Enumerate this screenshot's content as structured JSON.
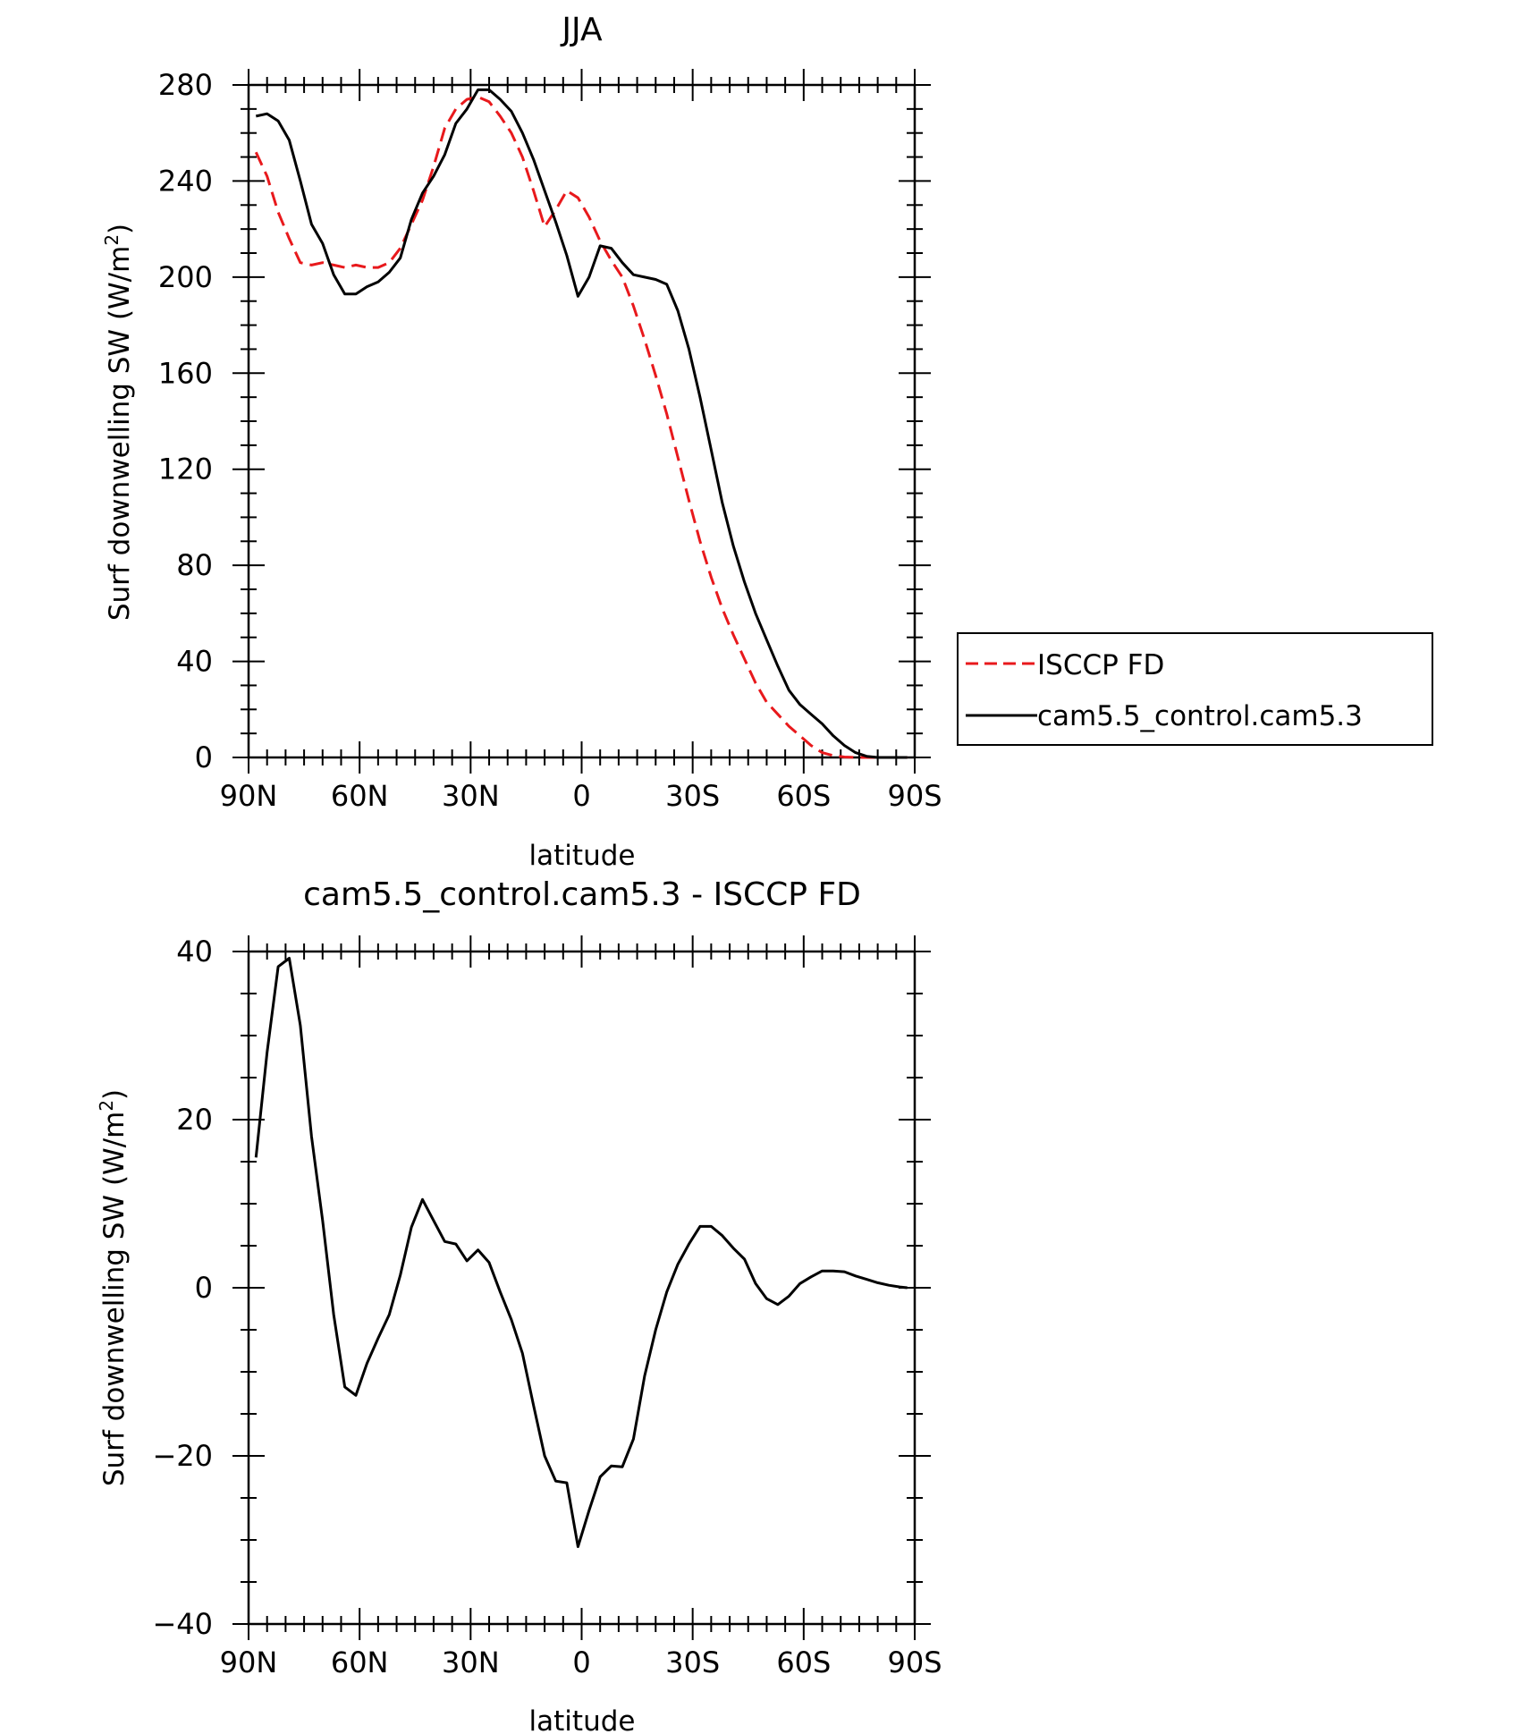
{
  "chart_data": [
    {
      "type": "line",
      "title": "JJA",
      "xlabel": "latitude",
      "ylabel_main": "Surf downwelling SW (W/m",
      "ylabel_sup": "2",
      "ylabel_close": ")",
      "xlim": [
        90,
        -90
      ],
      "ylim": [
        0,
        280
      ],
      "xticks": [
        90,
        60,
        30,
        0,
        -30,
        -60,
        -90
      ],
      "xtick_labels": [
        "90N",
        "60N",
        "30N",
        "0",
        "30S",
        "60S",
        "90S"
      ],
      "yticks": [
        0,
        40,
        80,
        120,
        160,
        200,
        240,
        280
      ],
      "ytick_labels": [
        "0",
        "40",
        "80",
        "120",
        "160",
        "200",
        "240",
        "280"
      ],
      "legend_position": "right",
      "series": [
        {
          "name": "ISCCP FD",
          "color": "#e8191c",
          "dash": "dashed",
          "x": [
            88,
            85,
            82,
            79,
            76,
            73,
            70,
            67,
            64,
            61,
            58,
            55,
            52,
            49,
            46,
            43,
            40,
            37,
            34,
            31,
            28,
            25,
            22,
            19,
            16,
            13,
            10,
            7,
            4,
            1,
            -2,
            -5,
            -8,
            -11,
            -14,
            -17,
            -20,
            -23,
            -26,
            -29,
            -32,
            -35,
            -38,
            -41,
            -44,
            -47,
            -50,
            -53,
            -56,
            -59,
            -62,
            -65,
            -68,
            -71,
            -74,
            -77,
            -80,
            -83,
            -86,
            -88
          ],
          "y": [
            252,
            242,
            227,
            216,
            206,
            205,
            206,
            205,
            204,
            205,
            204,
            204,
            206,
            212,
            222,
            232,
            246,
            262,
            270,
            274,
            275,
            273,
            267,
            260,
            250,
            236,
            221,
            228,
            236,
            233,
            225,
            215,
            207,
            200,
            188,
            174,
            159,
            143,
            125,
            107,
            90,
            75,
            62,
            51,
            41,
            31,
            23,
            18,
            13,
            9,
            5,
            2,
            0.8,
            0.2,
            0,
            0,
            0,
            0,
            0,
            0
          ]
        },
        {
          "name": "cam5.5_control.cam5.3",
          "color": "#000000",
          "dash": "solid",
          "x": [
            88,
            85,
            82,
            79,
            76,
            73,
            70,
            67,
            64,
            61,
            58,
            55,
            52,
            49,
            46,
            43,
            40,
            37,
            34,
            31,
            28,
            25,
            22,
            19,
            16,
            13,
            10,
            7,
            4,
            1,
            -2,
            -5,
            -8,
            -11,
            -14,
            -17,
            -20,
            -23,
            -26,
            -29,
            -32,
            -35,
            -38,
            -41,
            -44,
            -47,
            -50,
            -53,
            -56,
            -59,
            -62,
            -65,
            -68,
            -71,
            -74,
            -77,
            -80,
            -83,
            -86,
            -88
          ],
          "y": [
            267,
            268,
            265,
            257,
            240,
            222,
            214,
            201,
            193,
            193,
            196,
            198,
            202,
            208,
            224,
            235,
            242,
            251,
            264,
            270,
            278,
            278,
            274,
            269,
            260,
            249,
            236,
            223,
            209,
            192,
            200,
            213,
            212,
            206,
            201,
            200,
            199,
            197,
            186,
            170,
            150,
            128,
            106,
            88,
            73,
            60,
            49,
            38,
            28,
            22,
            18,
            14,
            9,
            5,
            2,
            0.5,
            0,
            0,
            0,
            0
          ]
        }
      ]
    },
    {
      "type": "line",
      "title": "cam5.5_control.cam5.3 - ISCCP FD",
      "xlabel": "latitude",
      "ylabel_main": "Surf downwelling SW (W/m",
      "ylabel_sup": "2",
      "ylabel_close": ")",
      "xlim": [
        90,
        -90
      ],
      "ylim": [
        -40,
        40
      ],
      "xticks": [
        90,
        60,
        30,
        0,
        -30,
        -60,
        -90
      ],
      "xtick_labels": [
        "90N",
        "60N",
        "30N",
        "0",
        "30S",
        "60S",
        "90S"
      ],
      "yticks": [
        -40,
        -20,
        0,
        20,
        40
      ],
      "ytick_labels": [
        "−40",
        "−20",
        "0",
        "20",
        "40"
      ],
      "series": [
        {
          "name": "",
          "color": "#000000",
          "dash": "solid",
          "x": [
            88,
            85,
            82,
            79,
            76,
            73,
            70,
            67,
            64,
            61,
            58,
            55,
            52,
            49,
            46,
            43,
            40,
            37,
            34,
            31,
            28,
            25,
            22,
            19,
            16,
            13,
            10,
            7,
            4,
            1,
            -2,
            -5,
            -8,
            -11,
            -14,
            -17,
            -20,
            -23,
            -26,
            -29,
            -32,
            -35,
            -38,
            -41,
            -44,
            -47,
            -50,
            -53,
            -56,
            -59,
            -62,
            -65,
            -68,
            -71,
            -74,
            -77,
            -80,
            -83,
            -86,
            -88
          ],
          "y": [
            15.5,
            28,
            38.2,
            39.2,
            31.2,
            18,
            8,
            -3.2,
            -11.8,
            -12.8,
            -9,
            -6,
            -3.2,
            1.5,
            7.2,
            10.5,
            8,
            5.5,
            5.2,
            3.2,
            4.5,
            3,
            -0.5,
            -3.8,
            -7.8,
            -14,
            -20,
            -23,
            -23.2,
            -30.8,
            -26.5,
            -22.5,
            -21.2,
            -21.3,
            -18,
            -10.5,
            -5,
            -0.5,
            2.8,
            5.2,
            7.3,
            7.3,
            6.2,
            4.7,
            3.4,
            0.5,
            -1.3,
            -2,
            -1,
            0.5,
            1.3,
            2,
            2,
            1.9,
            1.4,
            1,
            0.6,
            0.3,
            0.1,
            0
          ]
        }
      ]
    }
  ]
}
